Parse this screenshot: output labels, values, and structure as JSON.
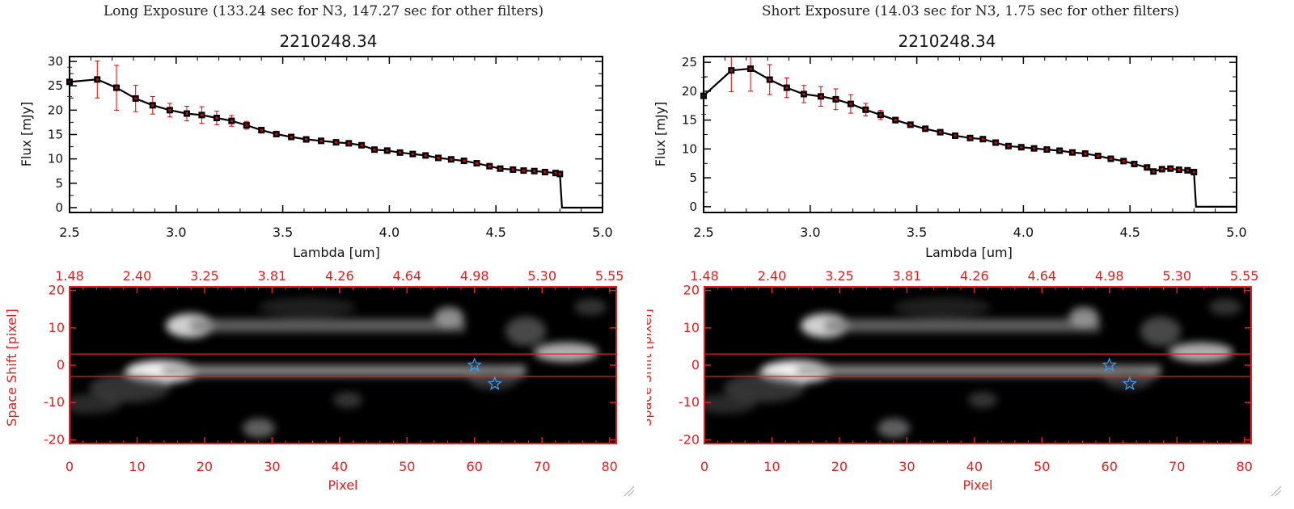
{
  "panels": [
    {
      "id": "long",
      "exposure_title": "Long Exposure (133.24 sec for N3, 147.27 sec for other filters)",
      "spectrum": {
        "title": "2210248.34",
        "xlabel": "Lambda [um]",
        "ylabel": "Flux [mJy]",
        "xlim": [
          2.5,
          5.0
        ],
        "ylim": [
          -1,
          31
        ],
        "xticks": [
          2.5,
          3.0,
          3.5,
          4.0,
          4.5,
          5.0
        ],
        "xtick_labels": [
          "2.5",
          "3.0",
          "3.5",
          "4.0",
          "4.5",
          "5.0"
        ],
        "yticks": [
          0,
          5,
          10,
          15,
          20,
          25,
          30
        ],
        "ytick_labels": [
          "0",
          "5",
          "10",
          "15",
          "20",
          "25",
          "30"
        ],
        "lambda": [
          2.5,
          2.63,
          2.72,
          2.81,
          2.89,
          2.97,
          3.05,
          3.12,
          3.19,
          3.26,
          3.33,
          3.4,
          3.47,
          3.54,
          3.61,
          3.68,
          3.75,
          3.81,
          3.87,
          3.93,
          3.99,
          4.05,
          4.11,
          4.17,
          4.23,
          4.29,
          4.35,
          4.41,
          4.47,
          4.52,
          4.58,
          4.63,
          4.68,
          4.73,
          4.78,
          4.8,
          4.81,
          5.0
        ],
        "flux": [
          25.8,
          26.3,
          24.6,
          22.4,
          21.0,
          20.0,
          19.3,
          19.0,
          18.4,
          17.8,
          16.9,
          15.9,
          15.1,
          14.5,
          14.0,
          13.7,
          13.4,
          13.2,
          12.8,
          11.9,
          11.7,
          11.3,
          11.0,
          10.7,
          10.2,
          9.9,
          9.6,
          9.1,
          8.5,
          8.0,
          7.8,
          7.6,
          7.5,
          7.3,
          7.1,
          6.9,
          0,
          0
        ],
        "error": [
          3.0,
          3.8,
          4.6,
          2.7,
          1.8,
          1.4,
          1.5,
          1.7,
          1.4,
          1.1,
          0.8,
          0.6,
          0.5,
          0.4,
          0.4,
          0.4,
          0.4,
          0.4,
          0.4,
          0.4,
          0.4,
          0.4,
          0.3,
          0.3,
          0.3,
          0.3,
          0.3,
          0.3,
          0.3,
          0.3,
          0.3,
          0.3,
          0.3,
          0.3,
          0.3,
          0.3,
          0,
          0
        ]
      },
      "image": {
        "xlabel": "Pixel",
        "ylabel": "Space Shift [pixel]",
        "xlim": [
          0,
          81
        ],
        "ylim": [
          -21,
          21
        ],
        "xticks": [
          0,
          10,
          20,
          30,
          40,
          50,
          60,
          70,
          80
        ],
        "xtick_labels": [
          "0",
          "10",
          "20",
          "30",
          "40",
          "50",
          "60",
          "70",
          "80"
        ],
        "yticks": [
          -20,
          -10,
          0,
          10,
          20
        ],
        "ytick_labels": [
          "-20",
          "-10",
          "0",
          "10",
          "20"
        ],
        "top_xticks": [
          0,
          10,
          20,
          30,
          40,
          50,
          60,
          70,
          80
        ],
        "top_xtick_labels": [
          "1.48",
          "2.40",
          "3.25",
          "3.81",
          "4.26",
          "4.64",
          "4.98",
          "5.30",
          "5.55"
        ],
        "aperture_lines": [
          3,
          -3
        ],
        "stars": [
          [
            60,
            0
          ],
          [
            63,
            -5
          ]
        ]
      }
    },
    {
      "id": "short",
      "exposure_title": "Short Exposure (14.03 sec for N3, 1.75 sec for other filters)",
      "spectrum": {
        "title": "2210248.34",
        "xlabel": "Lambda [um]",
        "ylabel": "Flux [mJy]",
        "xlim": [
          2.5,
          5.0
        ],
        "ylim": [
          -1,
          26
        ],
        "xticks": [
          2.5,
          3.0,
          3.5,
          4.0,
          4.5,
          5.0
        ],
        "xtick_labels": [
          "2.5",
          "3.0",
          "3.5",
          "4.0",
          "4.5",
          "5.0"
        ],
        "yticks": [
          0,
          5,
          10,
          15,
          20,
          25
        ],
        "ytick_labels": [
          "0",
          "5",
          "10",
          "15",
          "20",
          "25"
        ],
        "lambda": [
          2.5,
          2.63,
          2.72,
          2.81,
          2.89,
          2.97,
          3.05,
          3.12,
          3.19,
          3.26,
          3.33,
          3.4,
          3.47,
          3.54,
          3.61,
          3.68,
          3.75,
          3.81,
          3.87,
          3.93,
          3.99,
          4.05,
          4.11,
          4.17,
          4.23,
          4.29,
          4.35,
          4.41,
          4.47,
          4.52,
          4.58,
          4.61,
          4.65,
          4.69,
          4.73,
          4.77,
          4.8,
          4.81,
          5.0
        ],
        "flux": [
          19.2,
          23.6,
          23.9,
          22.0,
          20.6,
          19.5,
          19.1,
          18.6,
          17.8,
          16.8,
          15.9,
          15.0,
          14.2,
          13.5,
          12.9,
          12.3,
          11.9,
          11.7,
          11.1,
          10.5,
          10.3,
          10.1,
          9.9,
          9.7,
          9.4,
          9.2,
          8.8,
          8.3,
          7.9,
          7.4,
          6.8,
          6.1,
          6.5,
          6.6,
          6.4,
          6.3,
          6.0,
          0,
          0
        ],
        "error": [
          3.2,
          3.7,
          3.9,
          2.6,
          1.7,
          1.5,
          1.7,
          1.8,
          1.6,
          1.1,
          0.8,
          0.5,
          0.4,
          0.4,
          0.3,
          0.3,
          0.3,
          0.3,
          0.3,
          0.3,
          0.3,
          0.3,
          0.3,
          0.3,
          0.3,
          0.3,
          0.3,
          0.3,
          0.3,
          0.3,
          0.3,
          0.3,
          0.3,
          0.3,
          0.3,
          0.3,
          0.3,
          0,
          0
        ]
      },
      "image": {
        "xlabel": "Pixel",
        "ylabel": "Space Shift [pixel]",
        "xlim": [
          0,
          81
        ],
        "ylim": [
          -21,
          21
        ],
        "xticks": [
          0,
          10,
          20,
          30,
          40,
          50,
          60,
          70,
          80
        ],
        "xtick_labels": [
          "0",
          "10",
          "20",
          "30",
          "40",
          "50",
          "60",
          "70",
          "80"
        ],
        "yticks": [
          -20,
          -10,
          0,
          10,
          20
        ],
        "ytick_labels": [
          "-20",
          "-10",
          "0",
          "10",
          "20"
        ],
        "top_xticks": [
          0,
          10,
          20,
          30,
          40,
          50,
          60,
          70,
          80
        ],
        "top_xtick_labels": [
          "1.48",
          "2.40",
          "3.25",
          "3.81",
          "4.26",
          "4.64",
          "4.98",
          "5.30",
          "5.55"
        ],
        "aperture_lines": [
          3,
          -3
        ],
        "stars": [
          [
            60,
            0
          ],
          [
            63,
            -5
          ]
        ]
      }
    }
  ],
  "colors": {
    "spectrum_line": "#000000",
    "error_bar": "#e00000",
    "image_frame": "#e02020",
    "star": "#3aa0ff"
  },
  "chart_data": [
    {
      "type": "line",
      "title": "2210248.34",
      "xlabel": "Lambda [um]",
      "ylabel": "Flux [mJy]",
      "xlim": [
        2.5,
        5.0
      ],
      "ylim": [
        -1,
        31
      ],
      "grid": false,
      "series": [
        {
          "x": [
            2.5,
            2.63,
            2.72,
            2.81,
            2.89,
            2.97,
            3.05,
            3.12,
            3.19,
            3.26,
            3.33,
            3.4,
            3.47,
            3.54,
            3.61,
            3.68,
            3.75,
            3.81,
            3.87,
            3.93,
            3.99,
            4.05,
            4.11,
            4.17,
            4.23,
            4.29,
            4.35,
            4.41,
            4.47,
            4.52,
            4.58,
            4.63,
            4.68,
            4.73,
            4.78,
            4.8,
            4.81,
            5.0
          ],
          "values": [
            25.8,
            26.3,
            24.6,
            22.4,
            21.0,
            20.0,
            19.3,
            19.0,
            18.4,
            17.8,
            16.9,
            15.9,
            15.1,
            14.5,
            14.0,
            13.7,
            13.4,
            13.2,
            12.8,
            11.9,
            11.7,
            11.3,
            11.0,
            10.7,
            10.2,
            9.9,
            9.6,
            9.1,
            8.5,
            8.0,
            7.8,
            7.6,
            7.5,
            7.3,
            7.1,
            6.9,
            0,
            0
          ]
        }
      ]
    },
    {
      "type": "line",
      "title": "2210248.34",
      "xlabel": "Lambda [um]",
      "ylabel": "Flux [mJy]",
      "xlim": [
        2.5,
        5.0
      ],
      "ylim": [
        -1,
        26
      ],
      "grid": false,
      "series": [
        {
          "x": [
            2.5,
            2.63,
            2.72,
            2.81,
            2.89,
            2.97,
            3.05,
            3.12,
            3.19,
            3.26,
            3.33,
            3.4,
            3.47,
            3.54,
            3.61,
            3.68,
            3.75,
            3.81,
            3.87,
            3.93,
            3.99,
            4.05,
            4.11,
            4.17,
            4.23,
            4.29,
            4.35,
            4.41,
            4.47,
            4.52,
            4.58,
            4.61,
            4.65,
            4.69,
            4.73,
            4.77,
            4.8,
            4.81,
            5.0
          ],
          "values": [
            19.2,
            23.6,
            23.9,
            22.0,
            20.6,
            19.5,
            19.1,
            18.6,
            17.8,
            16.8,
            15.9,
            15.0,
            14.2,
            13.5,
            12.9,
            12.3,
            11.9,
            11.7,
            11.1,
            10.5,
            10.3,
            10.1,
            9.9,
            9.7,
            9.4,
            9.2,
            8.8,
            8.3,
            7.9,
            7.4,
            6.8,
            6.1,
            6.5,
            6.6,
            6.4,
            6.3,
            6.0,
            0,
            0
          ]
        }
      ]
    },
    {
      "type": "heatmap",
      "xlabel": "Pixel",
      "ylabel": "Space Shift [pixel]",
      "xlim": [
        0,
        81
      ],
      "ylim": [
        -21,
        21
      ],
      "top_axis_labels": [
        "1.48",
        "2.40",
        "3.25",
        "3.81",
        "4.26",
        "4.64",
        "4.98",
        "5.30",
        "5.55"
      ]
    },
    {
      "type": "heatmap",
      "xlabel": "Pixel",
      "ylabel": "Space Shift [pixel]",
      "xlim": [
        0,
        81
      ],
      "ylim": [
        -21,
        21
      ],
      "top_axis_labels": [
        "1.48",
        "2.40",
        "3.25",
        "3.81",
        "4.26",
        "4.64",
        "4.98",
        "5.30",
        "5.55"
      ]
    }
  ]
}
